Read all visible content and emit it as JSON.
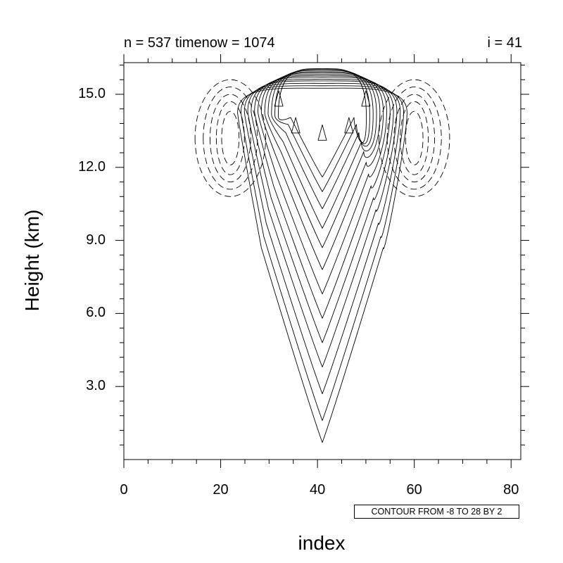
{
  "chart_data": {
    "type": "contour",
    "title_left": "n = 537 timenow = 1074",
    "title_right": "i = 41",
    "xlabel": "index",
    "ylabel": "Height (km)",
    "xlim": [
      0,
      82
    ],
    "ylim": [
      0,
      16.3
    ],
    "xticks": [
      {
        "value": 0,
        "label": "0"
      },
      {
        "value": 20,
        "label": "20"
      },
      {
        "value": 40,
        "label": "40"
      },
      {
        "value": 60,
        "label": "60"
      },
      {
        "value": 80,
        "label": "80"
      }
    ],
    "yticks": [
      {
        "value": 3,
        "label": "3.0"
      },
      {
        "value": 6,
        "label": "6.0"
      },
      {
        "value": 9,
        "label": "9.0"
      },
      {
        "value": 12,
        "label": "12.0"
      },
      {
        "value": 15,
        "label": "15.0"
      }
    ],
    "contour_info": "CONTOUR FROM -8 TO 28 BY 2",
    "contour_levels": {
      "min": -8,
      "max": 28,
      "step": 2
    },
    "negative_line_style": "dashed",
    "positive_line_style": "solid",
    "plume": {
      "center_index": 41,
      "tip_heights_km": [
        0.7,
        1.6,
        2.7,
        3.8,
        4.8,
        5.8,
        6.8,
        7.8,
        8.7,
        9.5,
        10.3,
        11.0,
        11.6
      ],
      "cap_heights_km": [
        15.25,
        15.35,
        15.45,
        15.55,
        15.62,
        15.7,
        15.76,
        15.82,
        15.88,
        15.93,
        15.98,
        16.02,
        16.05
      ],
      "half_widths_at_top": [
        17.5,
        16.8,
        16.1,
        15.4,
        14.7,
        14.0,
        13.3,
        12.6,
        11.9,
        11.2,
        10.5,
        9.8,
        9.1
      ]
    },
    "downdraft_lobes": [
      {
        "center_index": 22,
        "center_height_km": 13.2,
        "half_width": [
          7.3,
          5.6,
          4.2,
          2.9,
          1.8
        ],
        "half_height_km": [
          2.4,
          2.1,
          1.8,
          1.5,
          1.1
        ]
      },
      {
        "center_index": 60,
        "center_height_km": 13.2,
        "half_width": [
          7.3,
          5.6,
          4.2,
          2.9,
          1.8
        ],
        "half_height_km": [
          2.4,
          2.1,
          1.8,
          1.5,
          1.1
        ]
      }
    ]
  }
}
